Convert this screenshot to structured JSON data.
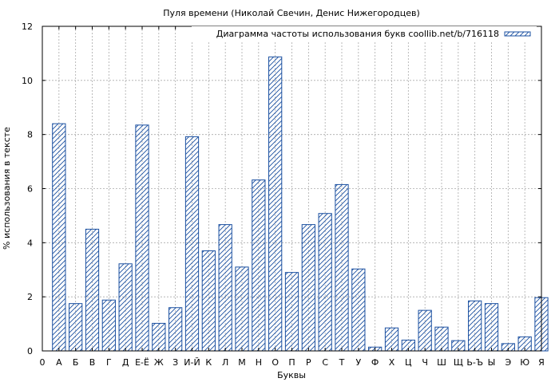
{
  "chart_data": {
    "type": "bar",
    "title": "Пуля времени (Николай Свечин, Денис Нижегородцев)",
    "xlabel": "Буквы",
    "ylabel": "% использования в тексте",
    "ylim": [
      0,
      12
    ],
    "yticks": [
      0,
      2,
      4,
      6,
      8,
      10,
      12
    ],
    "grid": true,
    "legend_position": "top-right",
    "x_origin_label": "0",
    "categories": [
      "А",
      "Б",
      "В",
      "Г",
      "Д",
      "Е-Ё",
      "Ж",
      "З",
      "И-Й",
      "К",
      "Л",
      "М",
      "Н",
      "О",
      "П",
      "Р",
      "С",
      "Т",
      "У",
      "Ф",
      "Х",
      "Ц",
      "Ч",
      "Ш",
      "Щ",
      "Ь-Ъ",
      "Ы",
      "Э",
      "Ю",
      "Я"
    ],
    "series": [
      {
        "name": "Диаграмма частоты использования букв coollib.net/b/716118",
        "values": [
          8.4,
          1.75,
          4.5,
          1.88,
          3.22,
          8.35,
          1.02,
          1.6,
          7.92,
          3.7,
          4.67,
          3.1,
          6.32,
          10.87,
          2.9,
          4.67,
          5.08,
          6.15,
          3.03,
          0.14,
          0.85,
          0.4,
          1.5,
          0.88,
          0.38,
          1.85,
          1.75,
          0.27,
          0.52,
          1.97
        ]
      }
    ],
    "colors": {
      "bar_edge": "#1a4fa0",
      "hatch": "#1a4fa0",
      "grid": "#aaaaaa",
      "axis": "#000000"
    }
  }
}
